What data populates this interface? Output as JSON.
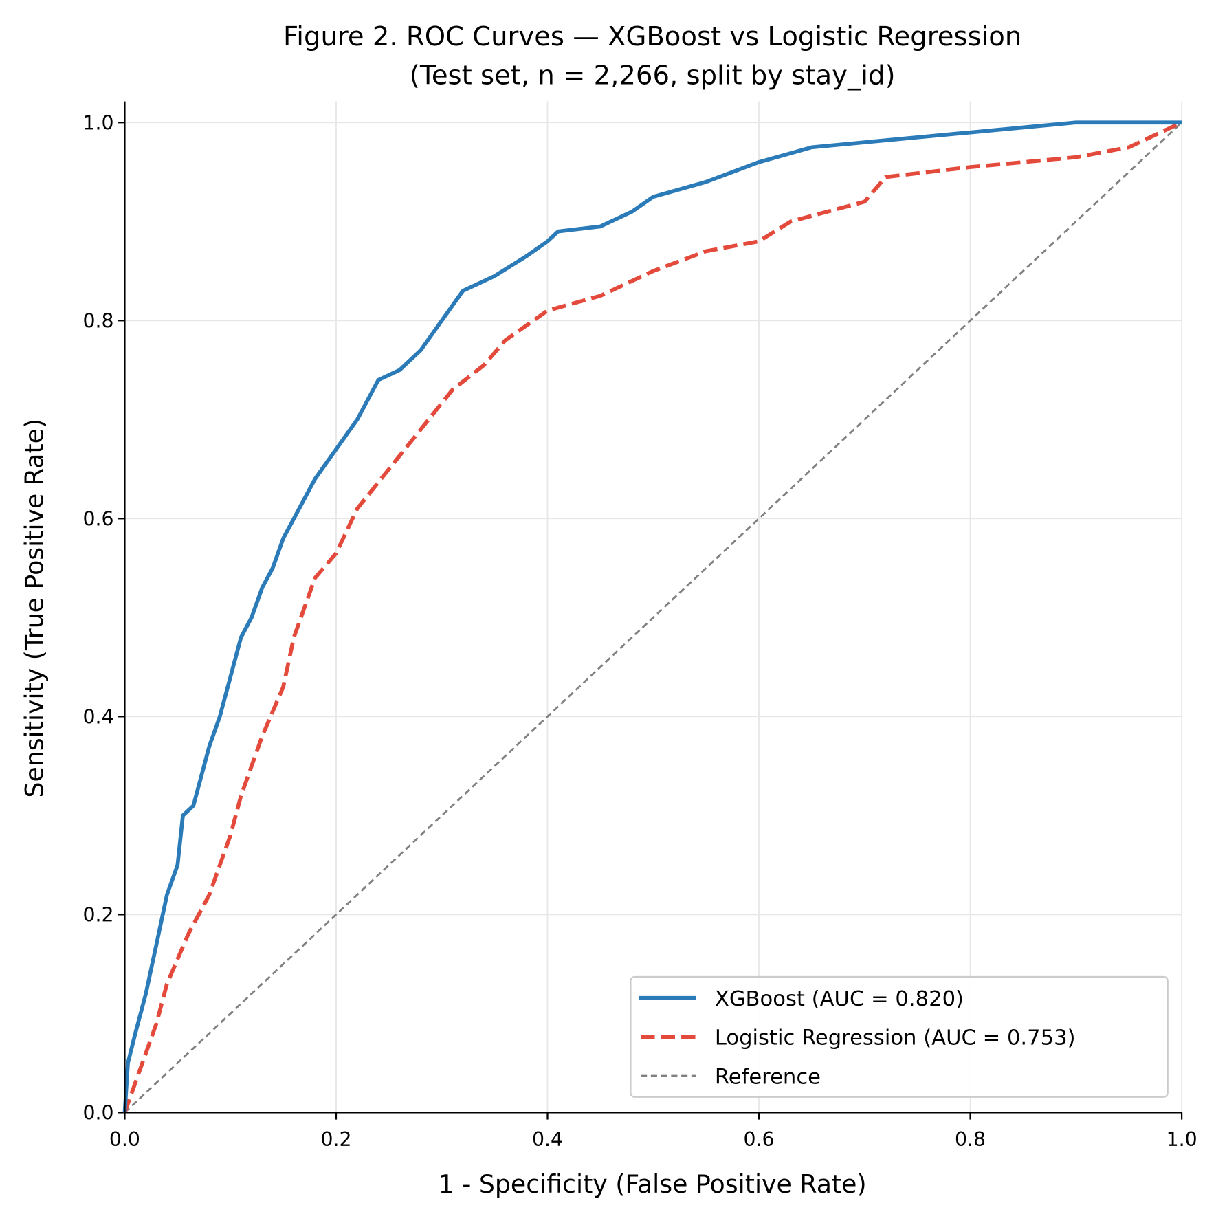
{
  "chart_data": {
    "type": "line",
    "title": "Figure 2. ROC Curves — XGBoost vs Logistic Regression",
    "subtitle": "(Test set, n = 2,266, split by stay_id)",
    "xlabel": "1 - Specificity (False Positive Rate)",
    "ylabel": "Sensitivity (True Positive Rate)",
    "xlim": [
      0,
      1
    ],
    "ylim": [
      0,
      1.02
    ],
    "xticks": [
      "0.0",
      "0.2",
      "0.4",
      "0.6",
      "0.8",
      "1.0"
    ],
    "yticks": [
      "0.0",
      "0.2",
      "0.4",
      "0.6",
      "0.8",
      "1.0"
    ],
    "grid": true,
    "legend_position": "bottom-right",
    "series": [
      {
        "name": "XGBoost (AUC = 0.820)",
        "color": "#2b7bb9",
        "style": "solid",
        "x": [
          0,
          0.003,
          0.01,
          0.02,
          0.03,
          0.04,
          0.05,
          0.055,
          0.065,
          0.075,
          0.08,
          0.09,
          0.1,
          0.11,
          0.12,
          0.13,
          0.14,
          0.15,
          0.16,
          0.18,
          0.2,
          0.22,
          0.24,
          0.26,
          0.28,
          0.3,
          0.32,
          0.35,
          0.38,
          0.4,
          0.41,
          0.45,
          0.48,
          0.5,
          0.55,
          0.6,
          0.65,
          0.7,
          0.75,
          0.8,
          0.9,
          1
        ],
        "y": [
          0,
          0.05,
          0.08,
          0.12,
          0.17,
          0.22,
          0.25,
          0.3,
          0.31,
          0.35,
          0.37,
          0.4,
          0.44,
          0.48,
          0.5,
          0.53,
          0.55,
          0.58,
          0.6,
          0.64,
          0.67,
          0.7,
          0.74,
          0.75,
          0.77,
          0.8,
          0.83,
          0.845,
          0.865,
          0.88,
          0.89,
          0.895,
          0.91,
          0.925,
          0.94,
          0.96,
          0.975,
          0.98,
          0.985,
          0.99,
          1,
          1
        ]
      },
      {
        "name": "Logistic Regression (AUC = 0.753)",
        "color": "#e34a3b",
        "style": "dashed",
        "x": [
          0,
          0.01,
          0.03,
          0.04,
          0.06,
          0.08,
          0.1,
          0.11,
          0.13,
          0.15,
          0.16,
          0.18,
          0.2,
          0.22,
          0.25,
          0.28,
          0.31,
          0.34,
          0.36,
          0.4,
          0.45,
          0.5,
          0.55,
          0.6,
          0.63,
          0.7,
          0.72,
          0.8,
          0.9,
          0.95,
          1
        ],
        "y": [
          0,
          0.03,
          0.09,
          0.13,
          0.18,
          0.22,
          0.28,
          0.32,
          0.38,
          0.43,
          0.48,
          0.54,
          0.565,
          0.61,
          0.65,
          0.69,
          0.73,
          0.755,
          0.78,
          0.81,
          0.825,
          0.85,
          0.87,
          0.88,
          0.9,
          0.92,
          0.945,
          0.955,
          0.965,
          0.975,
          1
        ]
      },
      {
        "name": "Reference",
        "color": "#808080",
        "style": "dashed-thin",
        "x": [
          0,
          1
        ],
        "y": [
          0,
          1
        ]
      }
    ]
  }
}
